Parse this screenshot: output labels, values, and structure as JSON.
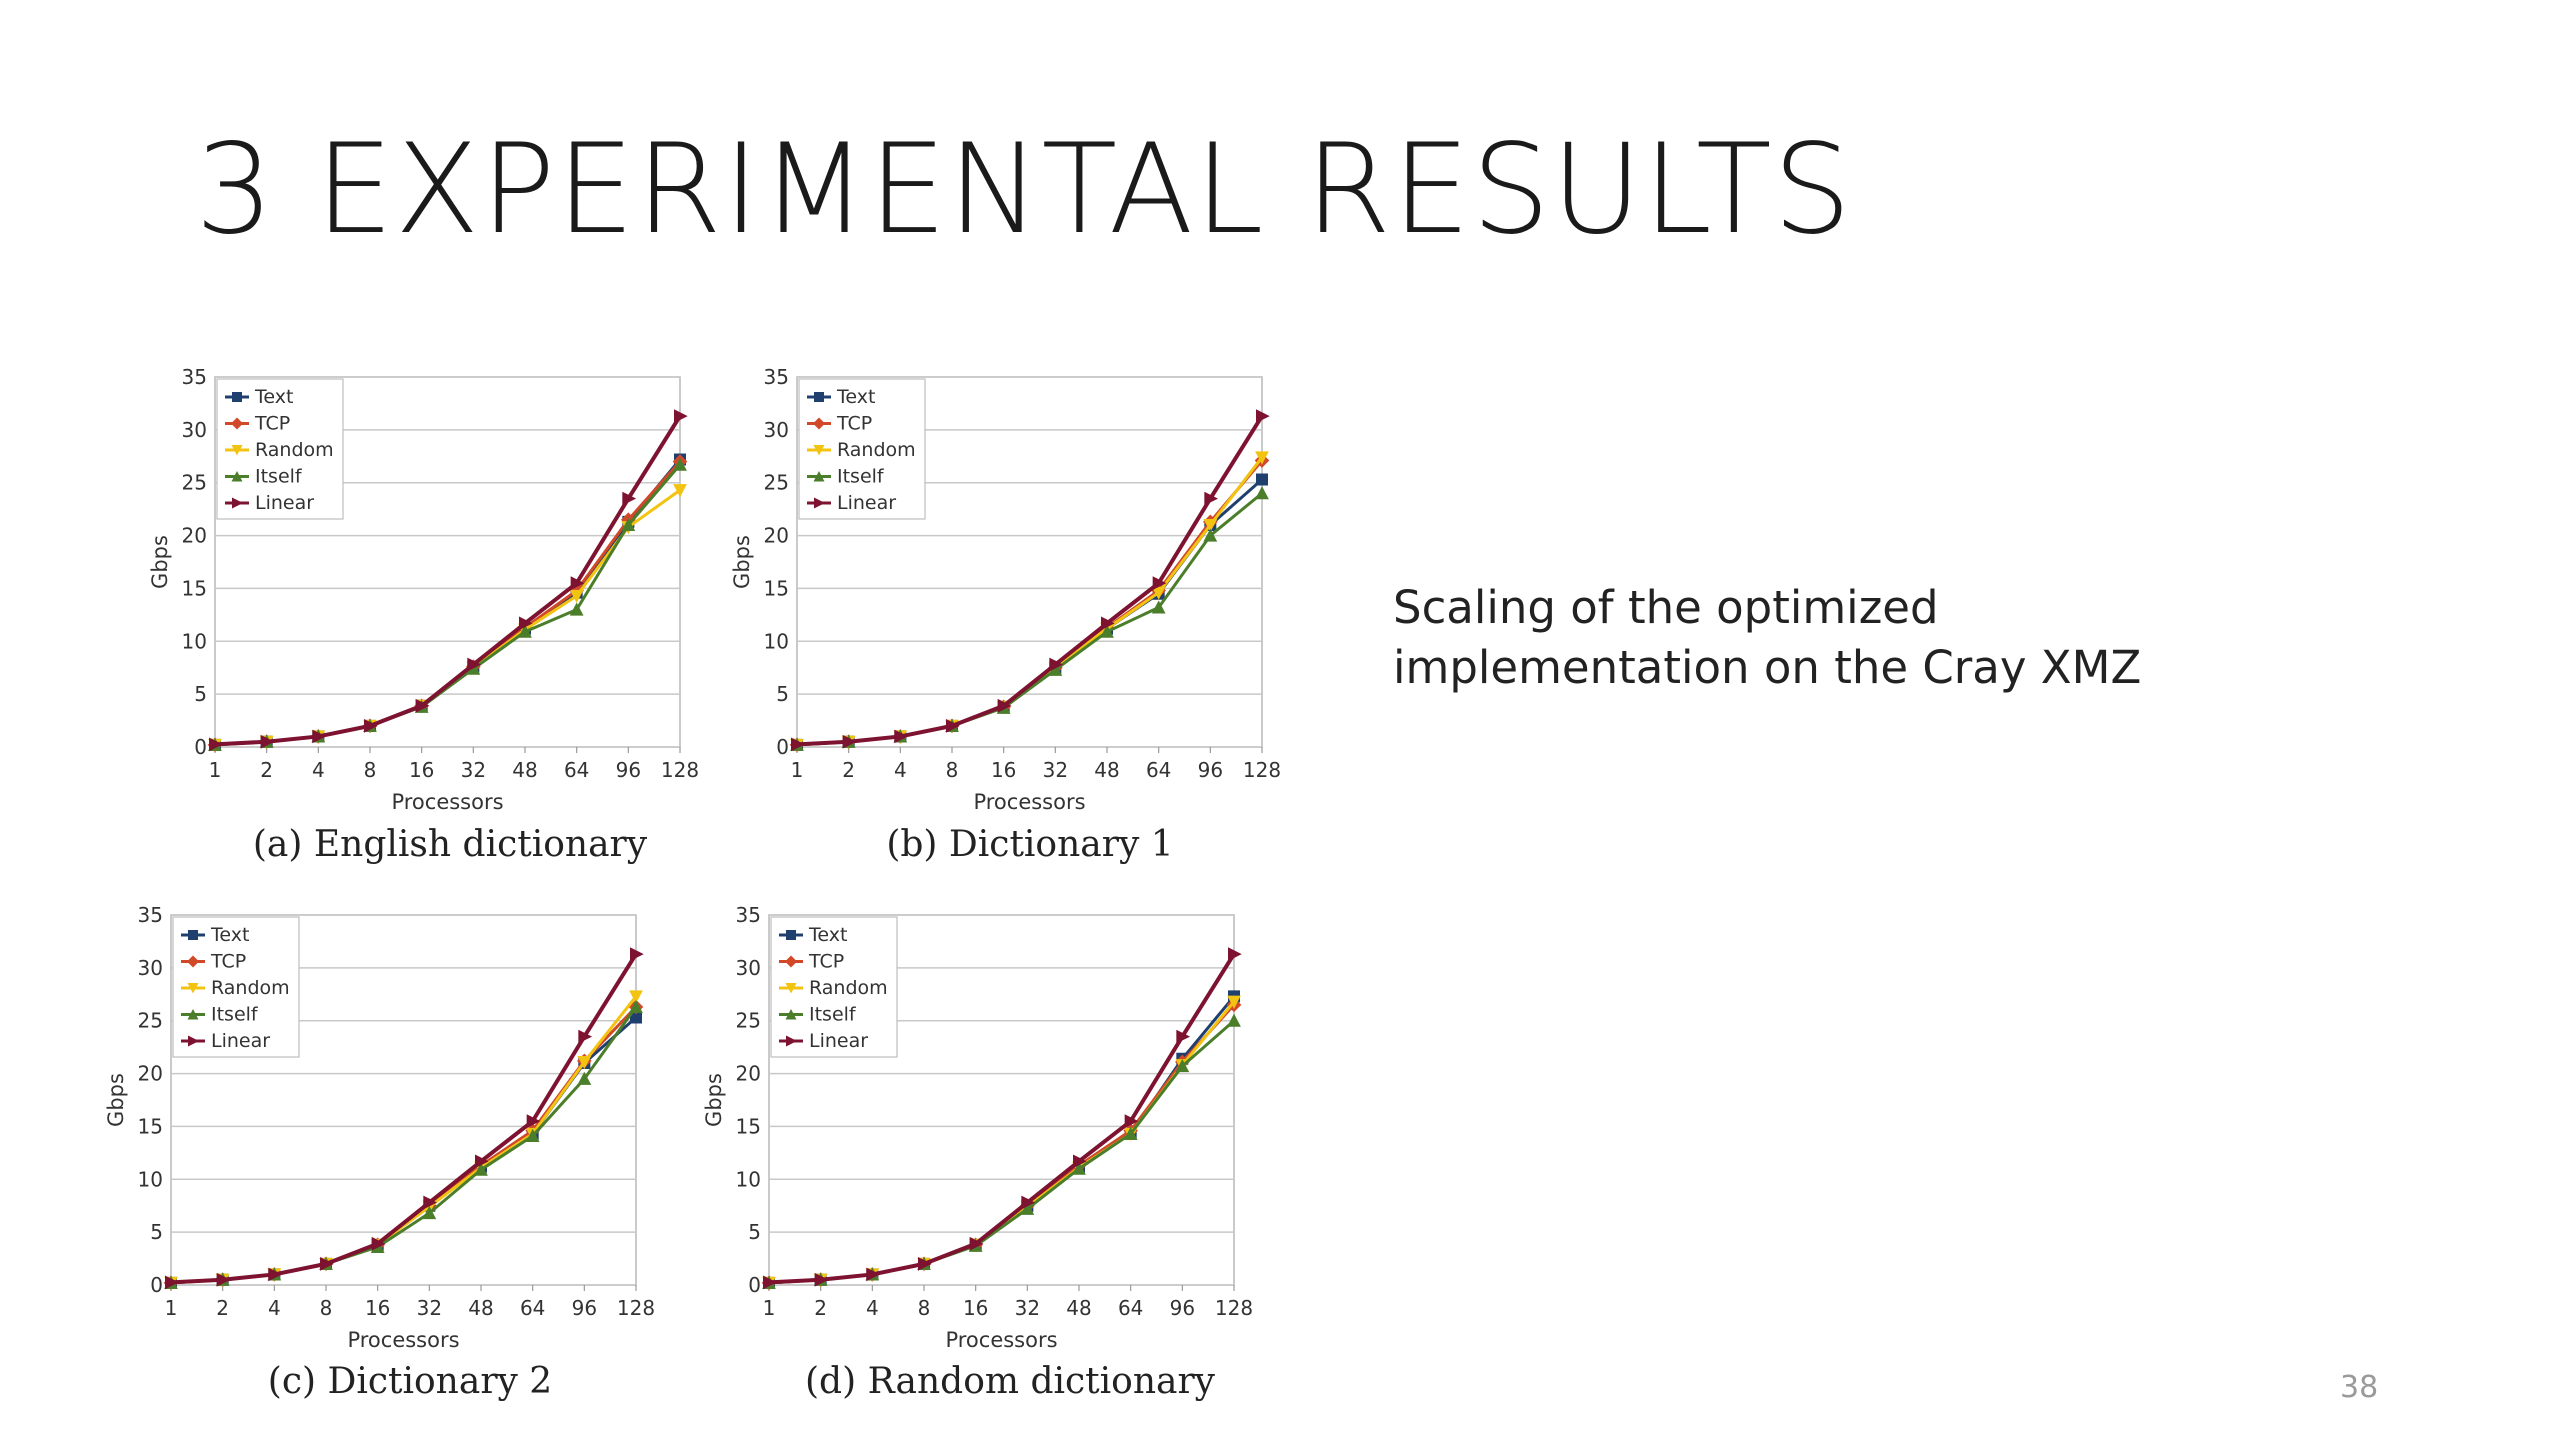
{
  "slide": {
    "title": "3 EXPERIMENTAL RESULTS",
    "body_lines": [
      "Scaling of the optimized",
      "implementation on the Cray XMZ"
    ],
    "page_number": "38"
  },
  "series_styles": [
    {
      "name": "Text",
      "color": "#1f3f6e",
      "marker": "square"
    },
    {
      "name": "TCP",
      "color": "#d2492a",
      "marker": "diamond"
    },
    {
      "name": "Random",
      "color": "#f2c311",
      "marker": "triangle-down"
    },
    {
      "name": "Itself",
      "color": "#4b7e2a",
      "marker": "triangle-up"
    },
    {
      "name": "Linear",
      "color": "#7d1330",
      "marker": "triangle-right"
    }
  ],
  "chart_data": [
    {
      "type": "line",
      "caption": "(a) English dictionary",
      "xlabel": "Processors",
      "ylabel": "Gbps",
      "x": [
        "1",
        "2",
        "4",
        "8",
        "16",
        "32",
        "48",
        "64",
        "96",
        "128"
      ],
      "ylim": [
        0,
        35
      ],
      "yticks": [
        0,
        5,
        10,
        15,
        20,
        25,
        30,
        35
      ],
      "grid": true,
      "legend": "top-left",
      "series": [
        {
          "name": "Text",
          "values": [
            0.2,
            0.5,
            1.0,
            2.0,
            3.9,
            7.6,
            11.2,
            14.6,
            21.3,
            27.2
          ]
        },
        {
          "name": "TCP",
          "values": [
            0.2,
            0.5,
            1.0,
            2.0,
            3.9,
            7.6,
            11.3,
            14.8,
            21.5,
            27.0
          ]
        },
        {
          "name": "Random",
          "values": [
            0.2,
            0.5,
            1.0,
            2.0,
            3.9,
            7.5,
            11.1,
            14.3,
            20.8,
            24.3
          ]
        },
        {
          "name": "Itself",
          "values": [
            0.2,
            0.5,
            1.0,
            2.0,
            3.8,
            7.4,
            10.9,
            13.0,
            21.0,
            26.7
          ]
        },
        {
          "name": "Linear",
          "values": [
            0.25,
            0.5,
            1.0,
            2.0,
            3.9,
            7.8,
            11.7,
            15.5,
            23.5,
            31.3
          ]
        }
      ]
    },
    {
      "type": "line",
      "caption": "(b) Dictionary 1",
      "xlabel": "Processors",
      "ylabel": "Gbps",
      "x": [
        "1",
        "2",
        "4",
        "8",
        "16",
        "32",
        "48",
        "64",
        "96",
        "128"
      ],
      "ylim": [
        0,
        35
      ],
      "yticks": [
        0,
        5,
        10,
        15,
        20,
        25,
        30,
        35
      ],
      "grid": true,
      "legend": "top-left",
      "series": [
        {
          "name": "Text",
          "values": [
            0.2,
            0.5,
            1.0,
            2.0,
            3.8,
            7.5,
            11.2,
            14.5,
            21.0,
            25.3
          ]
        },
        {
          "name": "TCP",
          "values": [
            0.2,
            0.5,
            1.0,
            2.0,
            3.8,
            7.5,
            11.3,
            14.8,
            21.3,
            27.1
          ]
        },
        {
          "name": "Random",
          "values": [
            0.2,
            0.5,
            1.0,
            2.0,
            3.8,
            7.5,
            11.2,
            14.6,
            21.0,
            27.4
          ]
        },
        {
          "name": "Itself",
          "values": [
            0.2,
            0.5,
            1.0,
            2.0,
            3.7,
            7.3,
            10.9,
            13.2,
            20.0,
            24.0
          ]
        },
        {
          "name": "Linear",
          "values": [
            0.25,
            0.5,
            1.0,
            2.0,
            3.9,
            7.8,
            11.7,
            15.5,
            23.5,
            31.3
          ]
        }
      ]
    },
    {
      "type": "line",
      "caption": "(c) Dictionary 2",
      "xlabel": "Processors",
      "ylabel": "Gbps",
      "x": [
        "1",
        "2",
        "4",
        "8",
        "16",
        "32",
        "48",
        "64",
        "96",
        "128"
      ],
      "ylim": [
        0,
        35
      ],
      "yticks": [
        0,
        5,
        10,
        15,
        20,
        25,
        30,
        35
      ],
      "grid": true,
      "legend": "top-left",
      "series": [
        {
          "name": "Text",
          "values": [
            0.2,
            0.5,
            1.0,
            2.0,
            3.8,
            7.5,
            11.2,
            14.3,
            21.0,
            25.3
          ]
        },
        {
          "name": "TCP",
          "values": [
            0.2,
            0.5,
            1.0,
            2.0,
            3.8,
            7.5,
            11.3,
            14.6,
            21.2,
            26.3
          ]
        },
        {
          "name": "Random",
          "values": [
            0.2,
            0.5,
            1.0,
            2.0,
            3.8,
            7.4,
            11.1,
            14.3,
            21.1,
            27.3
          ]
        },
        {
          "name": "Itself",
          "values": [
            0.2,
            0.5,
            1.0,
            2.0,
            3.6,
            6.8,
            10.9,
            14.1,
            19.5,
            26.3
          ]
        },
        {
          "name": "Linear",
          "values": [
            0.25,
            0.5,
            1.0,
            2.0,
            3.9,
            7.8,
            11.7,
            15.5,
            23.5,
            31.3
          ]
        }
      ]
    },
    {
      "type": "line",
      "caption": "(d) Random dictionary",
      "xlabel": "Processors",
      "ylabel": "Gbps",
      "x": [
        "1",
        "2",
        "4",
        "8",
        "16",
        "32",
        "48",
        "64",
        "96",
        "128"
      ],
      "ylim": [
        0,
        35
      ],
      "yticks": [
        0,
        5,
        10,
        15,
        20,
        25,
        30,
        35
      ],
      "grid": true,
      "legend": "top-left",
      "series": [
        {
          "name": "Text",
          "values": [
            0.2,
            0.5,
            1.0,
            2.0,
            3.8,
            7.5,
            11.2,
            14.3,
            21.4,
            27.3
          ]
        },
        {
          "name": "TCP",
          "values": [
            0.2,
            0.5,
            1.0,
            2.0,
            3.8,
            7.5,
            11.3,
            14.6,
            21.1,
            26.5
          ]
        },
        {
          "name": "Random",
          "values": [
            0.2,
            0.5,
            1.0,
            2.0,
            3.8,
            7.4,
            11.1,
            14.3,
            20.8,
            26.8
          ]
        },
        {
          "name": "Itself",
          "values": [
            0.2,
            0.5,
            1.0,
            2.0,
            3.7,
            7.2,
            11.0,
            14.3,
            20.7,
            25.0
          ]
        },
        {
          "name": "Linear",
          "values": [
            0.25,
            0.5,
            1.0,
            2.0,
            3.9,
            7.8,
            11.7,
            15.5,
            23.5,
            31.3
          ]
        }
      ]
    }
  ]
}
